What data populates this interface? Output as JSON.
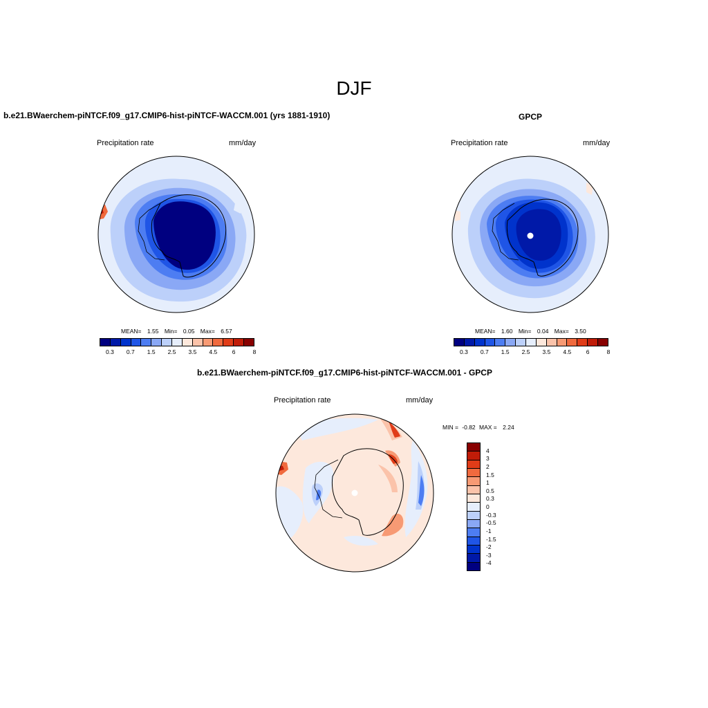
{
  "figure": {
    "title": "DJF"
  },
  "colors": {
    "abs_scale": [
      "#000080",
      "#0019a8",
      "#0033cc",
      "#1f55e6",
      "#4d7df2",
      "#8aa8f5",
      "#bcd0fa",
      "#e6eefc",
      "#fde8dc",
      "#fbc3aa",
      "#f79a74",
      "#f06a3e",
      "#e03c18",
      "#c01c08",
      "#880000"
    ],
    "diff_scale": [
      "#880000",
      "#c01c08",
      "#e03c18",
      "#f06a3e",
      "#f79a74",
      "#fbc3aa",
      "#fde8dc",
      "#e6eefc",
      "#bcd0fa",
      "#8aa8f5",
      "#4d7df2",
      "#1f55e6",
      "#0033cc",
      "#0019a8",
      "#000080"
    ]
  },
  "panels": {
    "model": {
      "title": "b.e21.BWaerchem-piNTCF.f09_g17.CMIP6-hist-piNTCF-WACCM.001 (yrs 1881-1910)",
      "left_label": "Precipitation rate",
      "right_label": "mm/day",
      "stats": {
        "mean_label": "MEAN=",
        "mean": "1.55",
        "min_label": "Min=",
        "min": "0.05",
        "max_label": "Max=",
        "max": "6.57"
      }
    },
    "obs": {
      "title": "GPCP",
      "left_label": "Precipitation rate",
      "right_label": "mm/day",
      "stats": {
        "mean_label": "MEAN=",
        "mean": "1.60",
        "min_label": "Min=",
        "min": "0.04",
        "max_label": "Max=",
        "max": "3.50"
      }
    },
    "diff": {
      "title": "b.e21.BWaerchem-piNTCF.f09_g17.CMIP6-hist-piNTCF-WACCM.001 - GPCP",
      "left_label": "Precipitation rate",
      "right_label": "mm/day",
      "minmax": {
        "min_label": "MIN =",
        "min": "-0.82",
        "max_label": "MAX =",
        "max": "2.24"
      }
    }
  },
  "colorbars": {
    "abs_ticks": [
      "0.3",
      "0.7",
      "1.5",
      "2.5",
      "3.5",
      "4.5",
      "6",
      "8"
    ],
    "diff_ticks": [
      "4",
      "3",
      "2",
      "1.5",
      "1",
      "0.5",
      "0.3",
      "0",
      "-0.3",
      "-0.5",
      "-1",
      "-1.5",
      "-2",
      "-3",
      "-4"
    ]
  }
}
